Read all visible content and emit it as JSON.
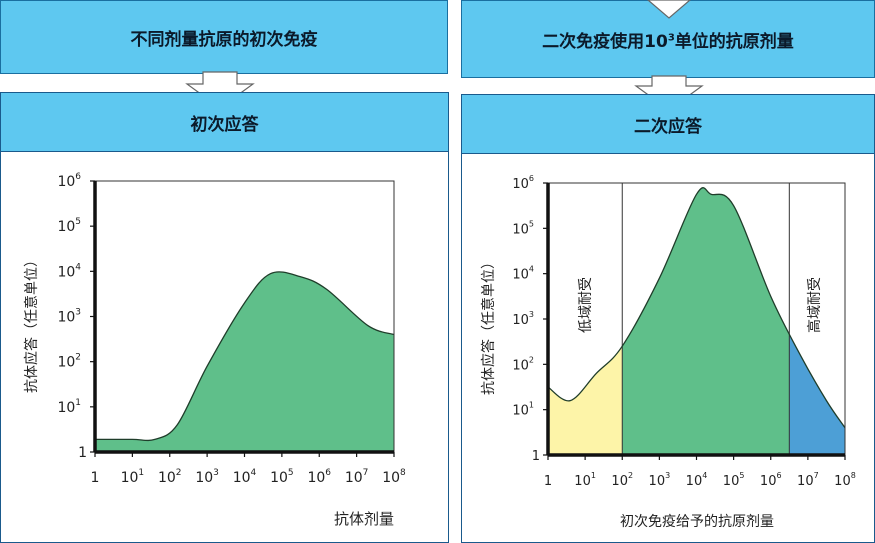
{
  "left": {
    "banner": "不同剂量抗原的初次免疫",
    "header": "初次应答",
    "xlabel": "抗体剂量",
    "ylabel": "抗体应答（任意单位）"
  },
  "right": {
    "banner_prefix": "二次免疫使用10",
    "banner_sup": "3",
    "banner_suffix": "单位的抗原剂量",
    "header": "二次应答",
    "xlabel": "初次免疫给予的抗原剂量",
    "ylabel": "抗体应答（任意单位）",
    "zone_low": "低域耐受",
    "zone_high": "高域耐受"
  },
  "axis": {
    "x_ticks": [
      {
        "base": "1",
        "exp": ""
      },
      {
        "base": "10",
        "exp": "1"
      },
      {
        "base": "10",
        "exp": "2"
      },
      {
        "base": "10",
        "exp": "3"
      },
      {
        "base": "10",
        "exp": "4"
      },
      {
        "base": "10",
        "exp": "5"
      },
      {
        "base": "10",
        "exp": "6"
      },
      {
        "base": "10",
        "exp": "7"
      },
      {
        "base": "10",
        "exp": "8"
      }
    ],
    "y_ticks": [
      {
        "base": "1",
        "exp": ""
      },
      {
        "base": "10",
        "exp": "1"
      },
      {
        "base": "10",
        "exp": "2"
      },
      {
        "base": "10",
        "exp": "3"
      },
      {
        "base": "10",
        "exp": "4"
      },
      {
        "base": "10",
        "exp": "5"
      },
      {
        "base": "10",
        "exp": "6"
      }
    ]
  },
  "colors": {
    "curve_fill": "#5fbf8a",
    "low_zone": "#fdf4a8",
    "high_zone": "#4d9fd6",
    "banner": "#5ec8f0"
  },
  "chart_data": [
    {
      "type": "area",
      "title": "初次应答",
      "xlabel": "抗体剂量",
      "ylabel": "抗体应答（任意单位）",
      "x_scale": "log10",
      "y_scale": "log10",
      "xlim": [
        1,
        100000000
      ],
      "ylim": [
        1,
        1000000
      ],
      "x_exp": [
        0,
        1,
        1.6,
        2.2,
        3,
        4,
        4.7,
        5.5,
        6.2,
        7.3,
        8
      ],
      "y_exp": [
        0.28,
        0.28,
        0.28,
        0.6,
        1.9,
        3.3,
        3.95,
        3.88,
        3.6,
        2.8,
        2.6
      ]
    },
    {
      "type": "area",
      "title": "二次应答",
      "xlabel": "初次免疫给予的抗原剂量",
      "ylabel": "抗体应答（任意单位）",
      "x_scale": "log10",
      "y_scale": "log10",
      "xlim": [
        1,
        100000000
      ],
      "ylim": [
        1,
        1000000
      ],
      "x_exp": [
        0,
        0.6,
        1.3,
        2,
        3,
        4,
        4.4,
        5,
        6,
        6.8,
        7.5,
        8
      ],
      "y_exp": [
        1.5,
        1.2,
        1.8,
        2.4,
        3.9,
        5.75,
        5.75,
        5.5,
        3.5,
        2.2,
        1.2,
        0.6
      ],
      "regions": [
        {
          "label": "低域耐受",
          "x_exp": [
            0,
            2
          ]
        },
        {
          "label": "高域耐受",
          "x_exp": [
            6.5,
            8
          ]
        }
      ]
    }
  ]
}
